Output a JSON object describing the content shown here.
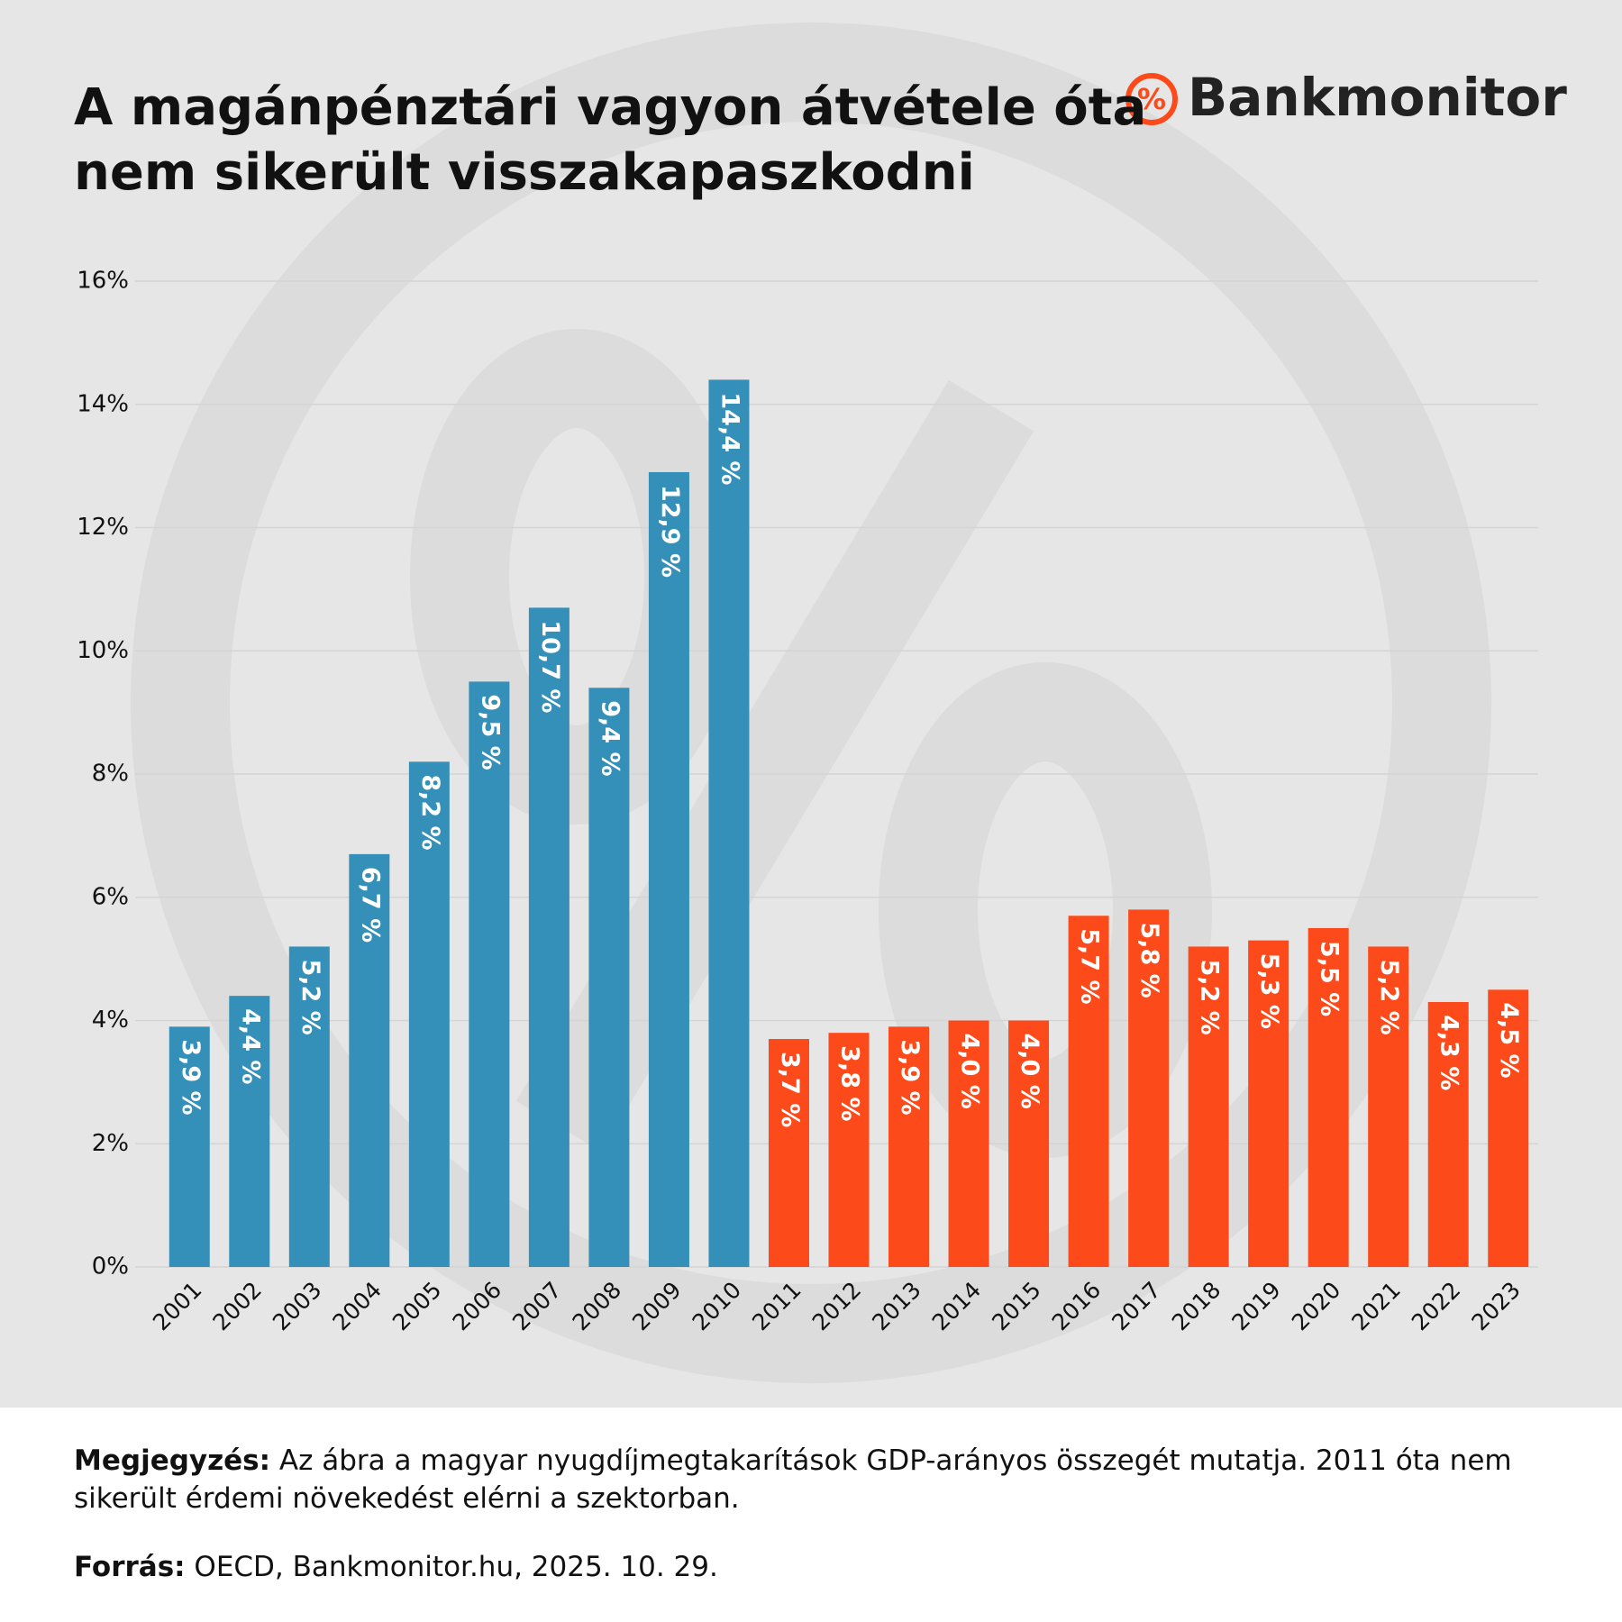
{
  "chart_data": {
    "type": "bar",
    "title": "A magánpénztári vagyon átvétele óta nem sikerült visszakapaszkodni",
    "brand": "Bankmonitor",
    "categories": [
      "2001",
      "2002",
      "2003",
      "2004",
      "2005",
      "2006",
      "2007",
      "2008",
      "2009",
      "2010",
      "2011",
      "2012",
      "2013",
      "2014",
      "2015",
      "2016",
      "2017",
      "2018",
      "2019",
      "2020",
      "2021",
      "2022",
      "2023"
    ],
    "values": [
      3.9,
      4.4,
      5.2,
      6.7,
      8.2,
      9.5,
      10.7,
      9.4,
      12.9,
      14.4,
      3.7,
      3.8,
      3.9,
      4.0,
      4.0,
      5.7,
      5.8,
      5.2,
      5.3,
      5.5,
      5.2,
      4.3,
      4.5
    ],
    "value_labels": [
      "3,9 %",
      "4,4 %",
      "5,2 %",
      "6,7 %",
      "8,2 %",
      "9,5 %",
      "10,7 %",
      "9,4 %",
      "12,9 %",
      "14,4 %",
      "3,7 %",
      "3,8 %",
      "3,9 %",
      "4,0 %",
      "4,0 %",
      "5,7 %",
      "5,8 %",
      "5,2 %",
      "5,3 %",
      "5,5 %",
      "5,2 %",
      "4,3 %",
      "4,5 %"
    ],
    "colors": [
      "#3490b8",
      "#3490b8",
      "#3490b8",
      "#3490b8",
      "#3490b8",
      "#3490b8",
      "#3490b8",
      "#3490b8",
      "#3490b8",
      "#3490b8",
      "#fc4a1a",
      "#fc4a1a",
      "#fc4a1a",
      "#fc4a1a",
      "#fc4a1a",
      "#fc4a1a",
      "#fc4a1a",
      "#fc4a1a",
      "#fc4a1a",
      "#fc4a1a",
      "#fc4a1a",
      "#fc4a1a",
      "#fc4a1a"
    ],
    "ylim": [
      0,
      16
    ],
    "yticks": [
      {
        "value": 0,
        "label": "0%"
      },
      {
        "value": 2,
        "label": "2%"
      },
      {
        "value": 4,
        "label": "4%"
      },
      {
        "value": 6,
        "label": "6%"
      },
      {
        "value": 8,
        "label": "8%"
      },
      {
        "value": 10,
        "label": "10%"
      },
      {
        "value": 12,
        "label": "12%"
      },
      {
        "value": 14,
        "label": "14%"
      },
      {
        "value": 16,
        "label": "16%"
      }
    ],
    "grid": true,
    "note_label": "Megjegyzés:",
    "note": "Az ábra a magyar nyugdíjmegtakarítások GDP-arányos összegét mutatja. 2011 óta nem sikerült érdemi növekedést elérni a szektorban.",
    "source_label": "Forrás:",
    "source": "OECD, Bankmonitor.hu, 2025. 10. 29."
  }
}
